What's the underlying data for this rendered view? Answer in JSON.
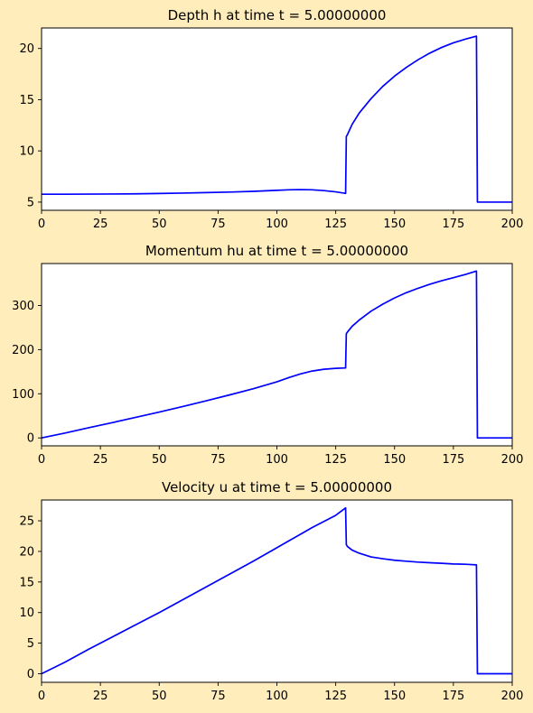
{
  "figure": {
    "background": "#ffeebb"
  },
  "chart_data": [
    {
      "type": "line",
      "title": "Depth h at time t =     5.00000000",
      "xlabel": "",
      "ylabel": "",
      "xlim": [
        0,
        200
      ],
      "ylim": [
        4.2,
        22.0
      ],
      "xticks": [
        0,
        25,
        50,
        75,
        100,
        125,
        150,
        175,
        200
      ],
      "yticks": [
        5,
        10,
        15,
        20
      ],
      "grid": false,
      "color": "#0000ff",
      "x": [
        0,
        10,
        20,
        30,
        40,
        50,
        60,
        70,
        80,
        90,
        100,
        105,
        110,
        115,
        120,
        125,
        129.2,
        129.5,
        130,
        132,
        135,
        140,
        145,
        150,
        155,
        160,
        165,
        170,
        175,
        180,
        184.8,
        185.2,
        190,
        200
      ],
      "y": [
        5.77,
        5.77,
        5.78,
        5.79,
        5.81,
        5.84,
        5.88,
        5.93,
        5.98,
        6.05,
        6.15,
        6.2,
        6.22,
        6.2,
        6.12,
        6.0,
        5.85,
        11.4,
        11.6,
        12.6,
        13.7,
        15.1,
        16.3,
        17.3,
        18.15,
        18.9,
        19.55,
        20.1,
        20.55,
        20.9,
        21.2,
        5.0,
        5.0,
        5.0
      ]
    },
    {
      "type": "line",
      "title": "Momentum hu at time t =     5.00000000",
      "xlabel": "",
      "ylabel": "",
      "xlim": [
        0,
        200
      ],
      "ylim": [
        -18,
        395
      ],
      "xticks": [
        0,
        25,
        50,
        75,
        100,
        125,
        150,
        175,
        200
      ],
      "yticks": [
        0,
        100,
        200,
        300
      ],
      "grid": false,
      "color": "#0000ff",
      "x": [
        0,
        10,
        20,
        30,
        40,
        50,
        60,
        70,
        80,
        90,
        100,
        105,
        110,
        115,
        120,
        125,
        129.2,
        129.5,
        130,
        132,
        135,
        140,
        145,
        150,
        155,
        160,
        165,
        170,
        175,
        180,
        184.8,
        185.2,
        190,
        200
      ],
      "y": [
        0,
        11,
        23,
        34.5,
        46.5,
        58.5,
        71,
        84,
        97.5,
        111.5,
        127,
        136.5,
        145,
        151.5,
        155.5,
        157.5,
        158.5,
        236,
        240,
        253,
        267,
        287,
        303,
        317,
        329,
        339,
        348,
        356,
        363,
        370,
        378,
        0,
        0,
        0
      ]
    },
    {
      "type": "line",
      "title": "Velocity u at time t =     5.00000000",
      "xlabel": "",
      "ylabel": "",
      "xlim": [
        0,
        200
      ],
      "ylim": [
        -1.4,
        28.4
      ],
      "xticks": [
        0,
        25,
        50,
        75,
        100,
        125,
        150,
        175,
        200
      ],
      "yticks": [
        0,
        5,
        10,
        15,
        20,
        25
      ],
      "grid": false,
      "color": "#0000ff",
      "x": [
        0,
        10,
        20,
        30,
        40,
        50,
        60,
        70,
        80,
        90,
        100,
        105,
        110,
        115,
        120,
        125,
        129.2,
        129.5,
        130,
        132,
        135,
        140,
        145,
        150,
        155,
        160,
        165,
        170,
        175,
        180,
        184.8,
        185.2,
        190,
        200
      ],
      "y": [
        0,
        1.9,
        4.0,
        6.0,
        8.0,
        10.0,
        12.1,
        14.2,
        16.3,
        18.4,
        20.6,
        21.7,
        22.8,
        23.9,
        24.9,
        25.9,
        27.1,
        21.1,
        20.8,
        20.2,
        19.7,
        19.1,
        18.8,
        18.55,
        18.4,
        18.25,
        18.15,
        18.05,
        17.95,
        17.9,
        17.8,
        0,
        0,
        0
      ]
    }
  ]
}
